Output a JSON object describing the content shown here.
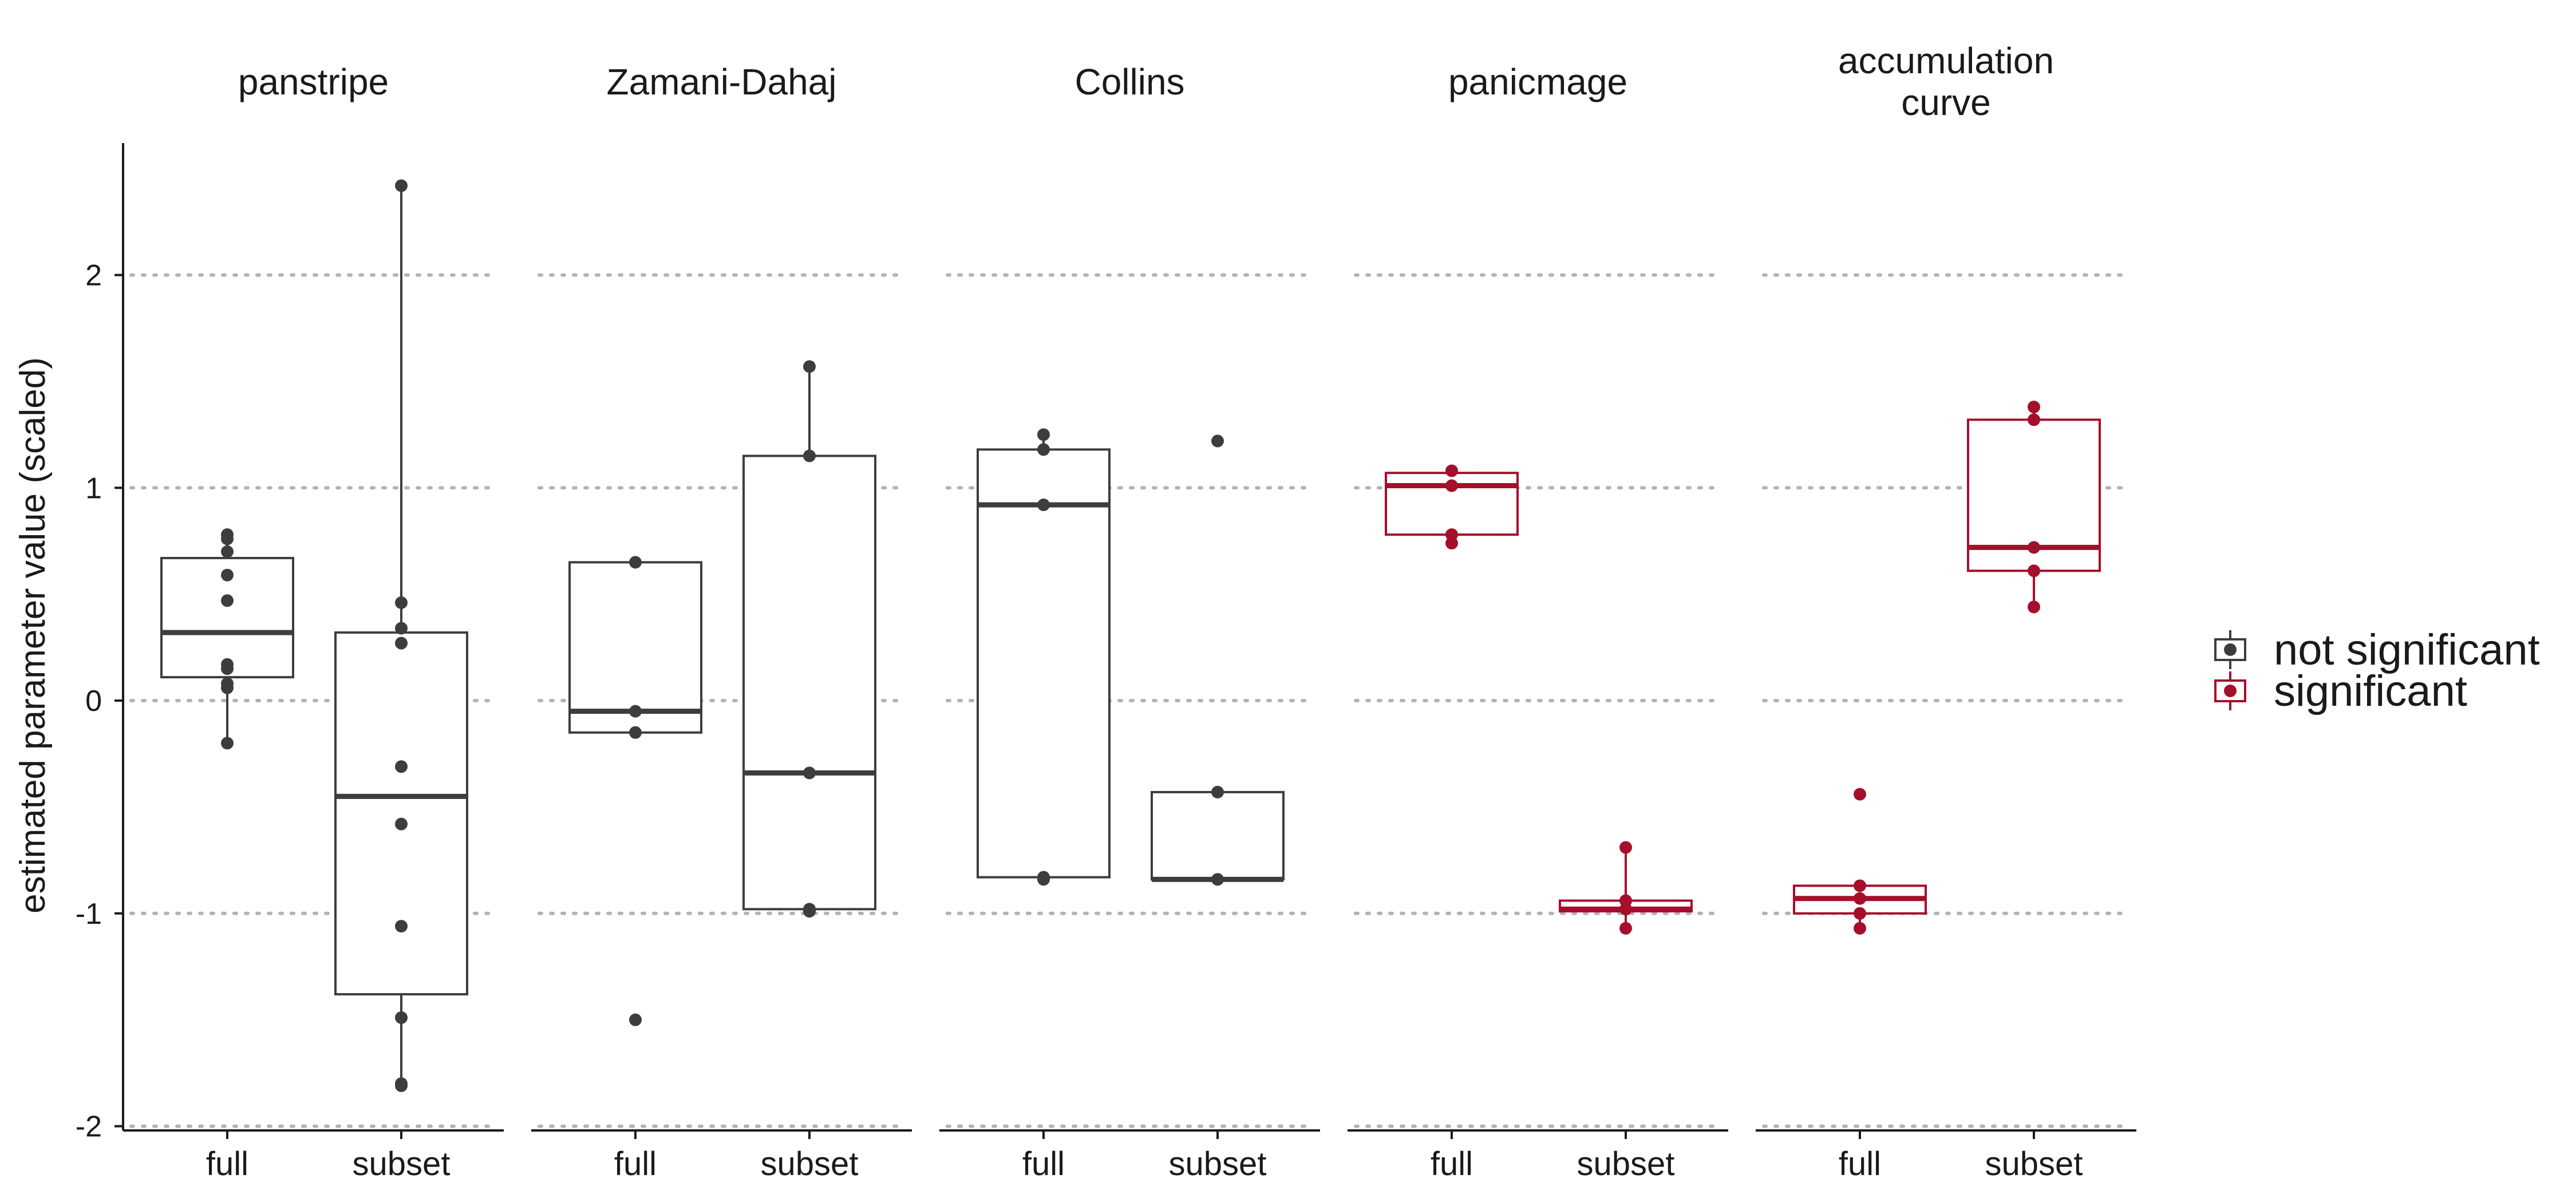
{
  "chart_data": {
    "type": "box",
    "ylabel": "estimated parameter value (scaled)",
    "xlabel": "",
    "ylim": [
      -2.02,
      2.62
    ],
    "yticks": [
      -2,
      -1,
      0,
      1,
      2
    ],
    "grid": "horizontal dotted",
    "categories": [
      "full",
      "subset"
    ],
    "legend": {
      "placement": "right",
      "items": [
        {
          "label": "not significant",
          "color": "#3d3d3d"
        },
        {
          "label": "significant",
          "color": "#a50f2b"
        }
      ]
    },
    "facets": [
      {
        "title": [
          "panstripe"
        ],
        "groups": [
          {
            "category": "full",
            "status": "not significant",
            "q1": 0.11,
            "median": 0.32,
            "q3": 0.67,
            "whisker_low": -0.2,
            "whisker_high": 0.78,
            "points": [
              0.78,
              0.76,
              0.7,
              0.59,
              0.47,
              0.17,
              0.15,
              0.08,
              0.06,
              -0.2
            ]
          },
          {
            "category": "subset",
            "status": "not significant",
            "q1": -1.38,
            "median": -0.45,
            "q3": 0.32,
            "whisker_low": -1.81,
            "whisker_high": 2.42,
            "points": [
              2.42,
              0.46,
              0.34,
              0.27,
              -0.31,
              -0.58,
              -1.06,
              -1.49,
              -1.8,
              -1.81
            ]
          }
        ]
      },
      {
        "title": [
          "Zamani-Dahaj"
        ],
        "groups": [
          {
            "category": "full",
            "status": "not significant",
            "q1": -0.15,
            "median": -0.05,
            "q3": 0.65,
            "whisker_low": -0.15,
            "whisker_high": 0.65,
            "points": [
              0.65,
              -0.05,
              -0.15,
              -1.5
            ]
          },
          {
            "category": "subset",
            "status": "not significant",
            "q1": -0.98,
            "median": -0.34,
            "q3": 1.15,
            "whisker_low": -0.99,
            "whisker_high": 1.57,
            "points": [
              1.57,
              1.15,
              -0.34,
              -0.98,
              -0.99
            ]
          }
        ]
      },
      {
        "title": [
          "Collins"
        ],
        "groups": [
          {
            "category": "full",
            "status": "not significant",
            "q1": -0.83,
            "median": 0.92,
            "q3": 1.18,
            "whisker_low": -0.83,
            "whisker_high": 1.25,
            "points": [
              1.25,
              1.18,
              0.92,
              -0.83,
              -0.84
            ]
          },
          {
            "category": "subset",
            "status": "not significant",
            "q1": -0.84,
            "median": -0.84,
            "q3": -0.43,
            "whisker_low": -0.84,
            "whisker_high": -0.43,
            "points": [
              1.22,
              -0.43,
              -0.84
            ]
          }
        ]
      },
      {
        "title": [
          "panicmage"
        ],
        "groups": [
          {
            "category": "full",
            "status": "significant",
            "q1": 0.78,
            "median": 1.01,
            "q3": 1.07,
            "whisker_low": 0.74,
            "whisker_high": 1.08,
            "points": [
              1.08,
              1.01,
              0.78,
              0.74
            ]
          },
          {
            "category": "subset",
            "status": "significant",
            "q1": -0.99,
            "median": -0.98,
            "q3": -0.94,
            "whisker_low": -1.07,
            "whisker_high": -0.69,
            "points": [
              -0.69,
              -0.94,
              -0.98,
              -1.07
            ]
          }
        ]
      },
      {
        "title": [
          "accumulation",
          "curve"
        ],
        "groups": [
          {
            "category": "full",
            "status": "significant",
            "q1": -1.0,
            "median": -0.93,
            "q3": -0.87,
            "whisker_low": -1.07,
            "whisker_high": -0.87,
            "points": [
              -0.44,
              -0.87,
              -0.93,
              -1.0,
              -1.07
            ]
          },
          {
            "category": "subset",
            "status": "significant",
            "q1": 0.61,
            "median": 0.72,
            "q3": 1.32,
            "whisker_low": 0.44,
            "whisker_high": 1.38,
            "points": [
              1.38,
              1.32,
              0.72,
              0.61,
              0.44
            ]
          }
        ]
      }
    ]
  }
}
